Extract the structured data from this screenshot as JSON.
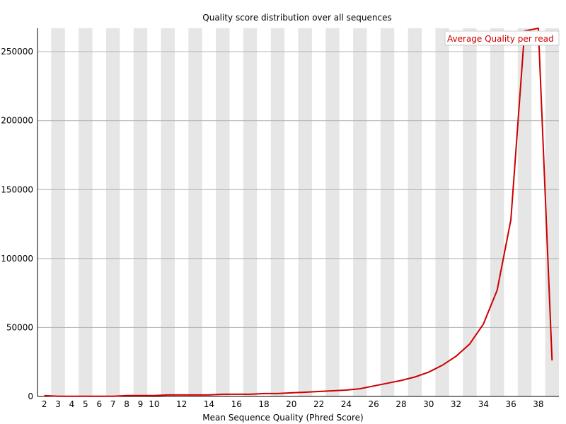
{
  "chart_data": {
    "type": "line",
    "title": "Quality score distribution over all sequences",
    "xlabel": "Mean Sequence Quality (Phred Score)",
    "ylabel": "",
    "xlim": [
      1.5,
      39.5
    ],
    "ylim": [
      0,
      267000
    ],
    "x_ticks": [
      2,
      3,
      4,
      5,
      6,
      7,
      8,
      9,
      10,
      12,
      14,
      16,
      18,
      20,
      22,
      24,
      26,
      28,
      30,
      32,
      34,
      36,
      38
    ],
    "y_ticks": [
      0,
      50000,
      100000,
      150000,
      200000,
      250000
    ],
    "y_tick_labels": [
      "0",
      "50000",
      "100000",
      "150000",
      "200000",
      "250000"
    ],
    "grid": "horizontal lines at y ticks; alternating vertical shaded bands per integer score",
    "legend_position": "top-right",
    "series": [
      {
        "name": "Average Quality per read",
        "color": "#cc0000",
        "x": [
          2,
          3,
          4,
          5,
          6,
          7,
          8,
          9,
          10,
          11,
          12,
          13,
          14,
          15,
          16,
          17,
          18,
          19,
          20,
          21,
          22,
          23,
          24,
          25,
          26,
          27,
          28,
          29,
          30,
          31,
          32,
          33,
          34,
          35,
          36,
          37,
          38,
          39
        ],
        "y": [
          600,
          100,
          100,
          100,
          100,
          100,
          600,
          600,
          600,
          1100,
          1100,
          1100,
          1100,
          1600,
          1600,
          1600,
          2100,
          2100,
          2600,
          3100,
          3600,
          4100,
          4600,
          5600,
          7600,
          9600,
          11600,
          14100,
          17600,
          22600,
          29100,
          38100,
          52600,
          77100,
          128100,
          265000,
          267000,
          26100
        ]
      }
    ]
  }
}
